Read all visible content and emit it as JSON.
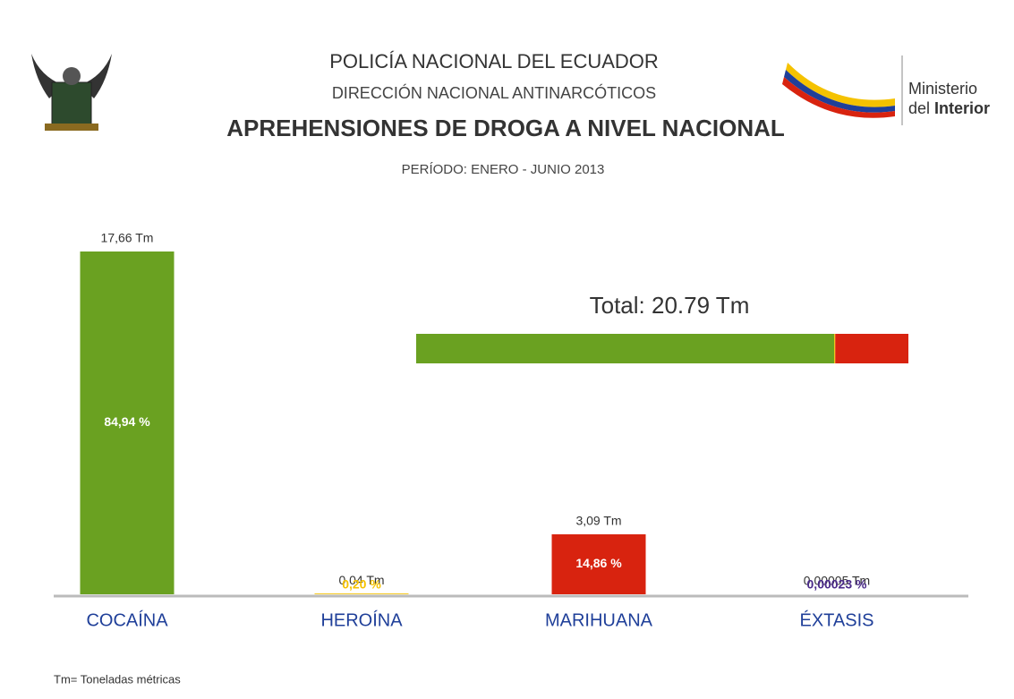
{
  "header": {
    "line1": "POLICÍA NACIONAL DEL ECUADOR",
    "line2": "DIRECCIÓN NACIONAL ANTINARCÓTICOS",
    "ministry": [
      "Ministerio",
      "del",
      "Interior"
    ]
  },
  "chart_data": {
    "type": "bar",
    "title": "APREHENSIONES DE DROGA A NIVEL NACIONAL",
    "subtitle": "PERÍODO: ENERO - JUNIO 2013",
    "categories": [
      "COCAÍNA",
      "HEROÍNA",
      "MARIHUANA",
      "ÉXTASIS"
    ],
    "values": [
      17.66,
      0.04,
      3.09,
      5e-05
    ],
    "value_labels": [
      "17,66 Tm",
      "0,04 Tm",
      "3,09 Tm",
      "0,00005 Tm"
    ],
    "percents": [
      84.94,
      0.2,
      14.86,
      0.00023
    ],
    "percent_labels": [
      "84,94 %",
      "0,20 %",
      "14,86 %",
      "0,00023 %"
    ],
    "colors": [
      "#6aa121",
      "#f5c200",
      "#d8230f",
      "#4b2a8a"
    ],
    "total_label": "Total: 20.79 Tm",
    "note": "Tm= Toneladas métricas"
  }
}
